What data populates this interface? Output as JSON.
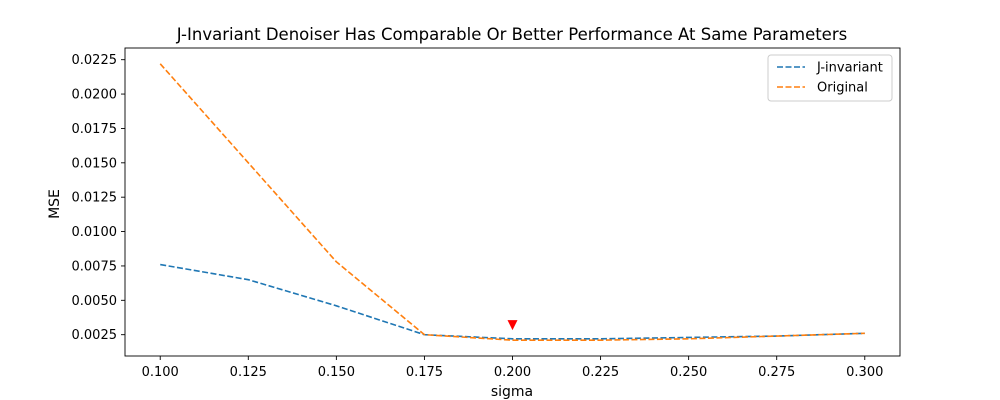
{
  "chart_data": {
    "type": "line",
    "title": "J-Invariant Denoiser Has Comparable Or Better Performance At Same Parameters",
    "xlabel": "sigma",
    "ylabel": "MSE",
    "xlim": [
      0.09,
      0.31
    ],
    "ylim": [
      0.00095,
      0.02335
    ],
    "xticks": [
      0.1,
      0.125,
      0.15,
      0.175,
      0.2,
      0.225,
      0.25,
      0.275,
      0.3
    ],
    "xtick_labels": [
      "0.100",
      "0.125",
      "0.150",
      "0.175",
      "0.200",
      "0.225",
      "0.250",
      "0.275",
      "0.300"
    ],
    "yticks": [
      0.0025,
      0.005,
      0.0075,
      0.01,
      0.0125,
      0.015,
      0.0175,
      0.02,
      0.0225
    ],
    "ytick_labels": [
      "0.0025",
      "0.0050",
      "0.0075",
      "0.0100",
      "0.0125",
      "0.0150",
      "0.0175",
      "0.0200",
      "0.0225"
    ],
    "grid": false,
    "legend_position": "top-right",
    "x": [
      0.1,
      0.125,
      0.15,
      0.175,
      0.2,
      0.225,
      0.25,
      0.275,
      0.3
    ],
    "series": [
      {
        "name": "J-invariant",
        "values": [
          0.0076,
          0.0065,
          0.0046,
          0.0025,
          0.0022,
          0.0022,
          0.0023,
          0.0024,
          0.0026
        ],
        "color": "#1f77b4",
        "style": "dashed"
      },
      {
        "name": "Original",
        "values": [
          0.0222,
          0.015,
          0.0078,
          0.0025,
          0.0021,
          0.0021,
          0.0022,
          0.0024,
          0.0026
        ],
        "color": "#ff7f0e",
        "style": "dashed"
      }
    ],
    "markers": [
      {
        "x": 0.2,
        "y": 0.0032,
        "shape": "triangle-down",
        "color": "#ff0000"
      }
    ]
  }
}
